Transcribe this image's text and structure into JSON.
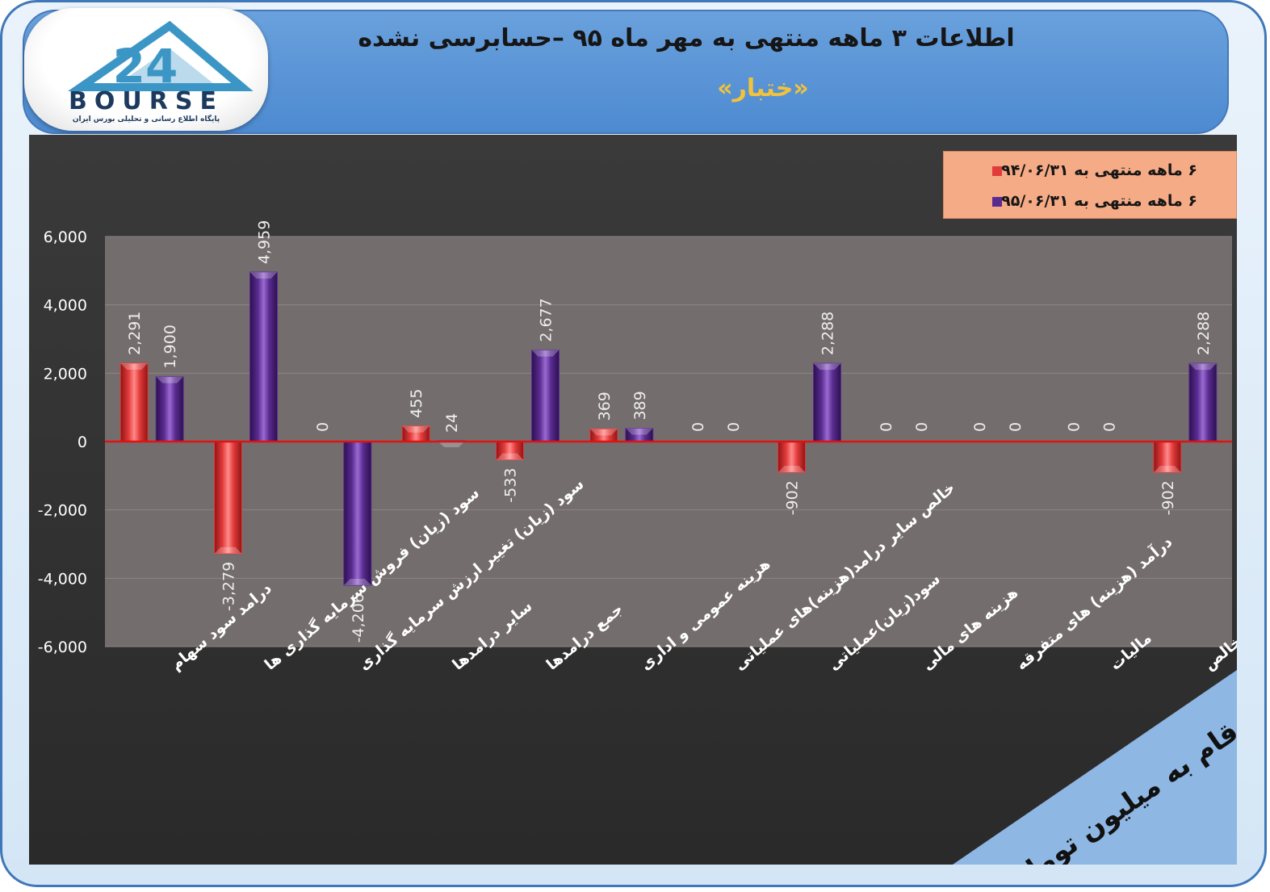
{
  "header": {
    "logo_text": "BOURSE",
    "logo_subtitle": "پایگاه اطلاع رسانی و تحلیلی بورس ایران",
    "logo_number": "24",
    "title": "اطلاعات ۳ ماهه منتهی به مهر ماه ۹۵ –حسابرسی نشده",
    "subtitle": "«ختبار»"
  },
  "units_note": "ارقام به میلیون تومان",
  "colors": {
    "series1": "#e23b3b",
    "series2": "#5a2c91",
    "plot_bg": "#746d6d",
    "zero_line": "#e01212",
    "axis_text": "#ffffff",
    "banner": "#8eb7e3"
  },
  "chart_data": {
    "type": "bar",
    "categories": [
      "درامد سود سهام",
      "سود (زیان) فروش سرمایه گذاری ها",
      "سود (زیان) تغییر ارزش سرمایه گذاری",
      "سایر درامدها",
      "جمع درامدها",
      "هزینه عمومی و اداری",
      "خالص سایر درامد(هزینه)های عملیاتی",
      "سود(زیان)عملیاتی",
      "هزینه های مالی",
      "درآمد (هزینه) های متفرقه",
      "مالیات",
      "سود(زیان) خالص"
    ],
    "series": [
      {
        "name": "۶ ماهه منتهی به ۹۴/۰۶/۳۱",
        "values": [
          2291,
          -3279,
          0,
          455,
          -533,
          369,
          0,
          -902,
          0,
          0,
          0,
          -902
        ]
      },
      {
        "name": "۶ ماهه منتهی به ۹۵/۰۶/۳۱",
        "values": [
          1900,
          4959,
          -4206,
          24,
          2677,
          389,
          0,
          2288,
          0,
          0,
          0,
          2288
        ]
      }
    ],
    "value_labels": [
      [
        "2,291",
        "-3,279",
        "0",
        "455",
        "-533",
        "369",
        "0",
        "-902",
        "0",
        "0",
        "0",
        "-902"
      ],
      [
        "1,900",
        "4,959",
        "-4,206",
        "24",
        "2,677",
        "389",
        "0",
        "2,288",
        "0",
        "0",
        "0",
        "2,288"
      ]
    ],
    "ylim": [
      -6000,
      6000
    ],
    "yticks": [
      6000,
      4000,
      2000,
      0,
      -2000,
      -4000,
      -6000
    ],
    "ytick_labels": [
      "6,000",
      "4,000",
      "2,000",
      "0",
      "-2,000",
      "-4,000",
      "-6,000"
    ],
    "grid": true,
    "legend_position": "top-right",
    "xlabel": "",
    "ylabel": "",
    "title": ""
  }
}
